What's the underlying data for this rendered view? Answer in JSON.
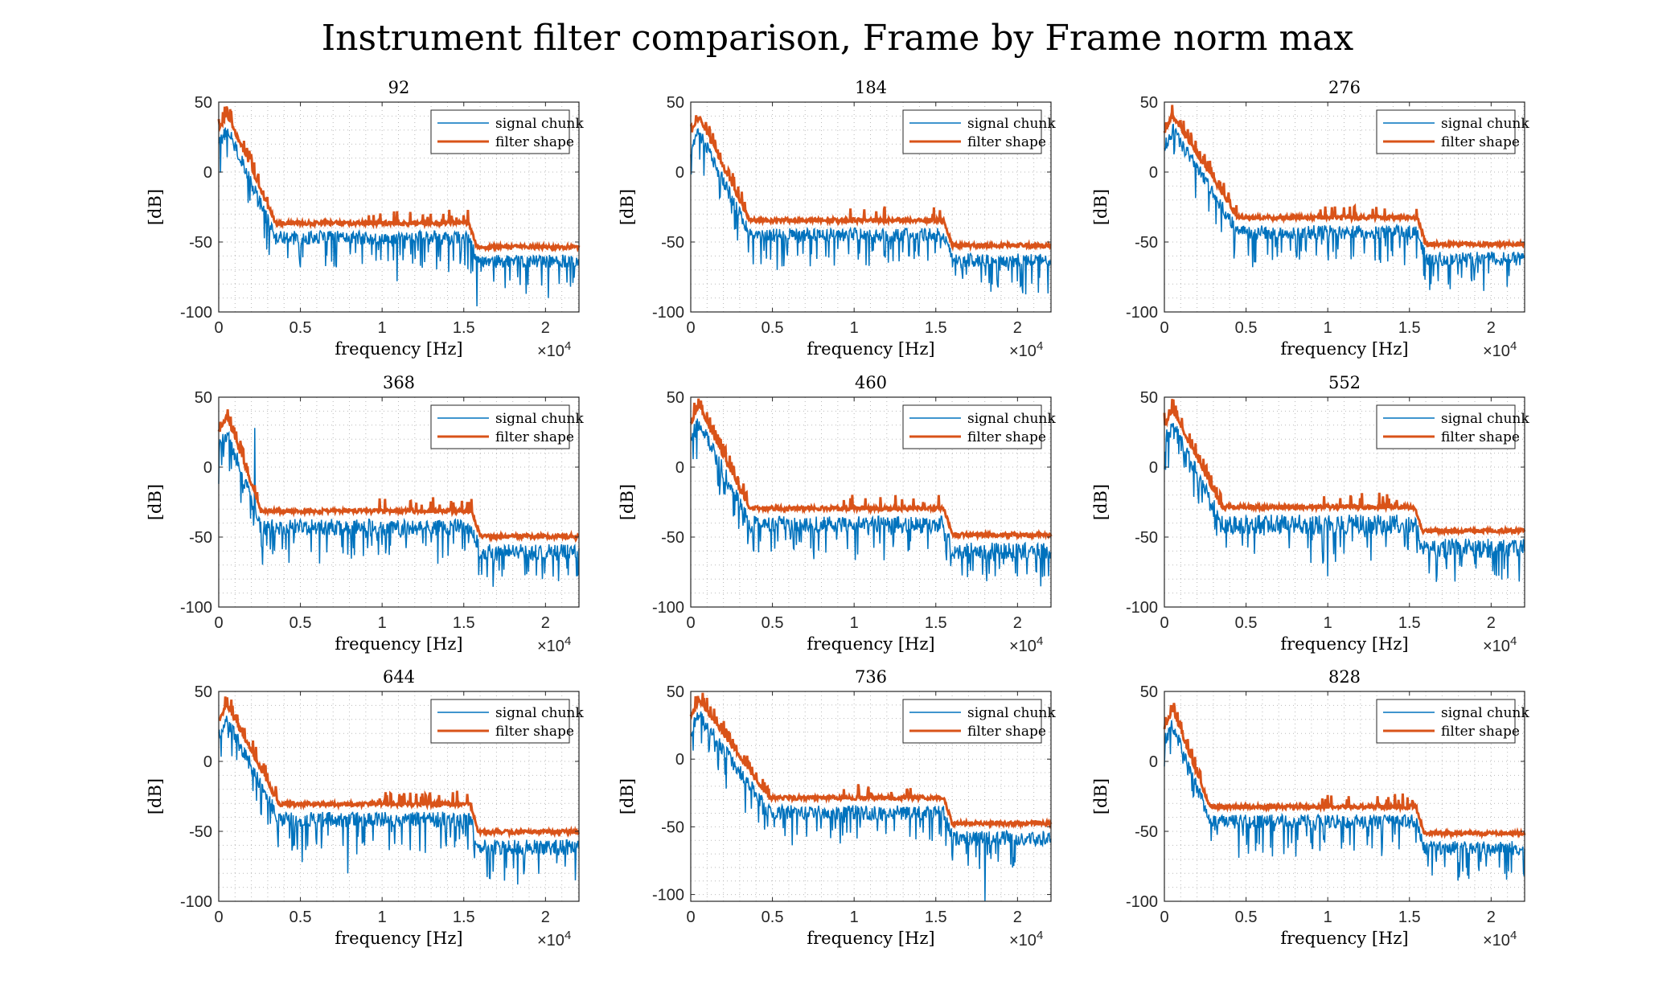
{
  "page_title": "Instrument filter comparison, Frame by Frame norm max",
  "colors": {
    "signal": "#0072BD",
    "filter": "#D95319",
    "grid": "#b9b9b9",
    "axis": "#262626"
  },
  "chart_data": [
    {
      "type": "line",
      "title": "92",
      "xlabel": "frequency [Hz]",
      "ylabel": "[dB]",
      "x_exponent": "×10^4",
      "xlim": [
        0,
        22050
      ],
      "ylim": [
        -100,
        50
      ],
      "xticks": [
        0,
        5000,
        10000,
        15000,
        20000
      ],
      "xtick_labels": [
        "0",
        "0.5",
        "1",
        "1.5",
        "2"
      ],
      "yticks": [
        -100,
        -50,
        0,
        50
      ],
      "ytick_labels": [
        "-100",
        "-50",
        "0",
        "50"
      ],
      "grid": "on",
      "legend_location": "top-right",
      "legend": [
        "signal chunk",
        "filter shape"
      ],
      "shape": {
        "peak": 38,
        "knee": 3500,
        "floor": -40,
        "cutoff": 15300,
        "high": -57,
        "sig_drop": 10,
        "spikes": [
          [
            15800,
            -96
          ],
          [
            10900,
            -78
          ]
        ]
      }
    },
    {
      "type": "line",
      "title": "184",
      "xlabel": "frequency [Hz]",
      "ylabel": "[dB]",
      "x_exponent": "×10^4",
      "xlim": [
        0,
        22050
      ],
      "ylim": [
        -100,
        50
      ],
      "xticks": [
        0,
        5000,
        10000,
        15000,
        20000
      ],
      "xtick_labels": [
        "0",
        "0.5",
        "1",
        "1.5",
        "2"
      ],
      "yticks": [
        -100,
        -50,
        0,
        50
      ],
      "ytick_labels": [
        "-100",
        "-50",
        "0",
        "50"
      ],
      "grid": "on",
      "legend_location": "top-right",
      "legend": [
        "signal chunk",
        "filter shape"
      ],
      "shape": {
        "peak": 36,
        "knee": 3600,
        "floor": -38,
        "cutoff": 15500,
        "high": -56,
        "sig_drop": 10,
        "spikes": [
          [
            16200,
            -74
          ],
          [
            5300,
            -70
          ]
        ]
      }
    },
    {
      "type": "line",
      "title": "276",
      "xlabel": "frequency [Hz]",
      "ylabel": "[dB]",
      "x_exponent": "×10^4",
      "xlim": [
        0,
        22050
      ],
      "ylim": [
        -100,
        50
      ],
      "xticks": [
        0,
        5000,
        10000,
        15000,
        20000
      ],
      "xtick_labels": [
        "0",
        "0.5",
        "1",
        "1.5",
        "2"
      ],
      "yticks": [
        -100,
        -50,
        0,
        50
      ],
      "ytick_labels": [
        "-100",
        "-50",
        "0",
        "50"
      ],
      "grid": "on",
      "legend_location": "top-right",
      "legend": [
        "signal chunk",
        "filter shape"
      ],
      "shape": {
        "peak": 37,
        "knee": 4500,
        "floor": -36,
        "cutoff": 15500,
        "high": -55,
        "sig_drop": 10,
        "spikes": [
          [
            21000,
            -82
          ],
          [
            5400,
            -68
          ]
        ]
      }
    },
    {
      "type": "line",
      "title": "368",
      "xlabel": "frequency [Hz]",
      "ylabel": "[dB]",
      "x_exponent": "×10^4",
      "xlim": [
        0,
        22050
      ],
      "ylim": [
        -100,
        50
      ],
      "xticks": [
        0,
        5000,
        10000,
        15000,
        20000
      ],
      "xtick_labels": [
        "0",
        "0.5",
        "1",
        "1.5",
        "2"
      ],
      "yticks": [
        -100,
        -50,
        0,
        50
      ],
      "ytick_labels": [
        "-100",
        "-50",
        "0",
        "50"
      ],
      "grid": "on",
      "legend_location": "top-right",
      "legend": [
        "signal chunk",
        "filter shape"
      ],
      "shape": {
        "peak": 33,
        "knee": 2600,
        "floor": -35,
        "cutoff": 15500,
        "high": -53,
        "sig_drop": 12,
        "spikes": [
          [
            21900,
            -78
          ],
          [
            19800,
            -80
          ],
          [
            2200,
            28
          ]
        ]
      }
    },
    {
      "type": "line",
      "title": "460",
      "xlabel": "frequency [Hz]",
      "ylabel": "[dB]",
      "x_exponent": "×10^4",
      "xlim": [
        0,
        22050
      ],
      "ylim": [
        -100,
        50
      ],
      "xticks": [
        0,
        5000,
        10000,
        15000,
        20000
      ],
      "xtick_labels": [
        "0",
        "0.5",
        "1",
        "1.5",
        "2"
      ],
      "yticks": [
        -100,
        -50,
        0,
        50
      ],
      "ytick_labels": [
        "-100",
        "-50",
        "0",
        "50"
      ],
      "grid": "on",
      "legend_location": "top-right",
      "legend": [
        "signal chunk",
        "filter shape"
      ],
      "shape": {
        "peak": 40,
        "knee": 3600,
        "floor": -33,
        "cutoff": 15500,
        "high": -52,
        "sig_drop": 12,
        "spikes": [
          [
            21900,
            -78
          ],
          [
            19900,
            -76
          ]
        ]
      }
    },
    {
      "type": "line",
      "title": "552",
      "xlabel": "frequency [Hz]",
      "ylabel": "[dB]",
      "x_exponent": "×10^4",
      "xlim": [
        0,
        22050
      ],
      "ylim": [
        -100,
        50
      ],
      "xticks": [
        0,
        5000,
        10000,
        15000,
        20000
      ],
      "xtick_labels": [
        "0",
        "0.5",
        "1",
        "1.5",
        "2"
      ],
      "yticks": [
        -100,
        -50,
        0,
        50
      ],
      "ytick_labels": [
        "-100",
        "-50",
        "0",
        "50"
      ],
      "grid": "on",
      "legend_location": "top-right",
      "legend": [
        "signal chunk",
        "filter shape"
      ],
      "shape": {
        "peak": 38,
        "knee": 3500,
        "floor": -32,
        "cutoff": 15300,
        "high": -49,
        "sig_drop": 14,
        "spikes": [
          [
            16200,
            -76
          ],
          [
            10000,
            -78
          ]
        ]
      }
    },
    {
      "type": "line",
      "title": "644",
      "xlabel": "frequency [Hz]",
      "ylabel": "[dB]",
      "x_exponent": "×10^4",
      "xlim": [
        0,
        22050
      ],
      "ylim": [
        -100,
        50
      ],
      "xticks": [
        0,
        5000,
        10000,
        15000,
        20000
      ],
      "xtick_labels": [
        "0",
        "0.5",
        "1",
        "1.5",
        "2"
      ],
      "yticks": [
        -100,
        -50,
        0,
        50
      ],
      "ytick_labels": [
        "-100",
        "-50",
        "0",
        "50"
      ],
      "grid": "on",
      "legend_location": "top-right",
      "legend": [
        "signal chunk",
        "filter shape"
      ],
      "shape": {
        "peak": 37,
        "knee": 3700,
        "floor": -34,
        "cutoff": 15400,
        "high": -54,
        "sig_drop": 11,
        "spikes": [
          [
            7900,
            -80
          ],
          [
            18300,
            -88
          ],
          [
            5100,
            -72
          ]
        ]
      }
    },
    {
      "type": "line",
      "title": "736",
      "xlabel": "frequency [Hz]",
      "ylabel": "[dB]",
      "x_exponent": "×10^4",
      "xlim": [
        0,
        22050
      ],
      "ylim": [
        -105,
        50
      ],
      "xticks": [
        0,
        5000,
        10000,
        15000,
        20000
      ],
      "xtick_labels": [
        "0",
        "0.5",
        "1",
        "1.5",
        "2"
      ],
      "yticks": [
        -100,
        -50,
        0,
        50
      ],
      "ytick_labels": [
        "-100",
        "-50",
        "0",
        "50"
      ],
      "grid": "on",
      "legend_location": "top-right",
      "legend": [
        "signal chunk",
        "filter shape"
      ],
      "shape": {
        "peak": 40,
        "knee": 4800,
        "floor": -32,
        "cutoff": 15500,
        "high": -51,
        "sig_drop": 11,
        "spikes": [
          [
            18000,
            -105
          ],
          [
            19700,
            -80
          ]
        ]
      }
    },
    {
      "type": "line",
      "title": "828",
      "xlabel": "frequency [Hz]",
      "ylabel": "[dB]",
      "x_exponent": "×10^4",
      "xlim": [
        0,
        22050
      ],
      "ylim": [
        -100,
        50
      ],
      "xticks": [
        0,
        5000,
        10000,
        15000,
        20000
      ],
      "xtick_labels": [
        "0",
        "0.5",
        "1",
        "1.5",
        "2"
      ],
      "yticks": [
        -100,
        -50,
        0,
        50
      ],
      "ytick_labels": [
        "-100",
        "-50",
        "0",
        "50"
      ],
      "grid": "on",
      "legend_location": "top-right",
      "legend": [
        "signal chunk",
        "filter shape"
      ],
      "shape": {
        "peak": 33,
        "knee": 2800,
        "floor": -36,
        "cutoff": 15400,
        "high": -55,
        "sig_drop": 10,
        "spikes": [
          [
            18000,
            -72
          ],
          [
            6600,
            -68
          ]
        ]
      }
    }
  ]
}
